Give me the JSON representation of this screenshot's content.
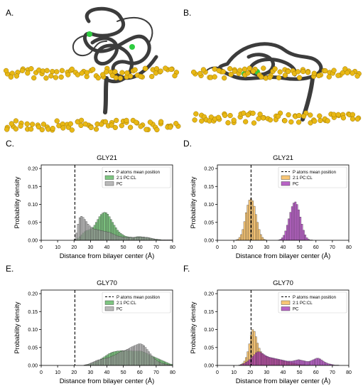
{
  "figure": {
    "panels": {
      "A": {
        "label": "A."
      },
      "B": {
        "label": "B."
      }
    }
  },
  "chart_data": [
    {
      "panel_label": "C.",
      "type": "bar",
      "title": "GLY21",
      "xlabel": "Distance from bilayer center (Å)",
      "ylabel": "Probability density",
      "xlim": [
        0,
        80
      ],
      "ylim": [
        0,
        0.21
      ],
      "xticks": [
        "0",
        "10",
        "20",
        "30",
        "40",
        "50",
        "60",
        "70",
        "80"
      ],
      "yticks": [
        "0.00",
        "0.05",
        "0.10",
        "0.15",
        "0.20"
      ],
      "vline": {
        "x": 20.5,
        "name": "P atoms mean position"
      },
      "legend_position": "top-right",
      "bin_width": 1,
      "series": [
        {
          "name": "2:1 PC:CL",
          "color": "#4caf50",
          "x": [
            20,
            21,
            22,
            23,
            24,
            25,
            26,
            27,
            28,
            29,
            30,
            31,
            32,
            33,
            34,
            35,
            36,
            37,
            38,
            39,
            40,
            41,
            42,
            43,
            44,
            45,
            46,
            47,
            48,
            49,
            50,
            51,
            52,
            53,
            54,
            55,
            56,
            57,
            58,
            59,
            60,
            61,
            62,
            63,
            64,
            65,
            66,
            67,
            68,
            69,
            70,
            71,
            72,
            73,
            74,
            75,
            76,
            77,
            78,
            79
          ],
          "values": [
            0.001,
            0.003,
            0.006,
            0.01,
            0.015,
            0.02,
            0.024,
            0.027,
            0.028,
            0.03,
            0.032,
            0.036,
            0.042,
            0.05,
            0.058,
            0.066,
            0.072,
            0.076,
            0.078,
            0.077,
            0.073,
            0.066,
            0.058,
            0.05,
            0.042,
            0.035,
            0.028,
            0.023,
            0.019,
            0.016,
            0.013,
            0.011,
            0.01,
            0.009,
            0.009,
            0.008,
            0.008,
            0.009,
            0.01,
            0.01,
            0.01,
            0.009,
            0.009,
            0.008,
            0.008,
            0.007,
            0.006,
            0.005,
            0.004,
            0.003,
            0.003,
            0.002,
            0.002,
            0.001,
            0.001,
            0.001,
            0.001,
            0.001,
            0.001,
            0.001
          ]
        },
        {
          "name": "PC",
          "color": "#9e9e9e",
          "x": [
            20,
            21,
            22,
            23,
            24,
            25,
            26,
            27,
            28,
            29,
            30,
            31,
            32,
            33,
            34,
            35,
            36,
            37,
            38,
            39,
            40,
            41,
            42,
            43,
            44,
            45,
            46,
            47,
            48,
            49,
            50,
            51,
            52,
            53,
            54,
            55,
            56,
            57,
            58,
            59,
            60,
            61,
            62,
            63,
            64,
            65,
            66,
            67,
            68,
            69,
            70,
            71,
            72,
            73,
            74,
            75,
            76,
            77,
            78,
            79
          ],
          "values": [
            0.004,
            0.02,
            0.045,
            0.063,
            0.067,
            0.064,
            0.058,
            0.052,
            0.045,
            0.04,
            0.036,
            0.033,
            0.031,
            0.03,
            0.029,
            0.028,
            0.027,
            0.026,
            0.025,
            0.024,
            0.023,
            0.022,
            0.02,
            0.018,
            0.016,
            0.014,
            0.012,
            0.011,
            0.01,
            0.009,
            0.009,
            0.008,
            0.008,
            0.008,
            0.008,
            0.008,
            0.008,
            0.008,
            0.009,
            0.009,
            0.009,
            0.009,
            0.009,
            0.008,
            0.008,
            0.007,
            0.006,
            0.005,
            0.004,
            0.003,
            0.002,
            0.002,
            0.001,
            0.001,
            0.001,
            0.001,
            0.001,
            0.001,
            0.001,
            0.001
          ]
        }
      ]
    },
    {
      "panel_label": "D.",
      "type": "bar",
      "title": "GLY21",
      "xlabel": "Distance from bilayer center (Å)",
      "ylabel": "Probability density",
      "xlim": [
        0,
        80
      ],
      "ylim": [
        0,
        0.21
      ],
      "xticks": [
        "0",
        "10",
        "20",
        "30",
        "40",
        "50",
        "60",
        "70",
        "80"
      ],
      "yticks": [
        "0.00",
        "0.05",
        "0.10",
        "0.15",
        "0.20"
      ],
      "vline": {
        "x": 20.5,
        "name": "P atoms mean position"
      },
      "legend_position": "top-right",
      "bin_width": 1,
      "series": [
        {
          "name": "2:1 PC:CL",
          "color": "#f5b041",
          "x": [
            11,
            12,
            13,
            14,
            15,
            16,
            17,
            18,
            19,
            20,
            21,
            22,
            23,
            24,
            25,
            26,
            27,
            28,
            29
          ],
          "values": [
            0.001,
            0.003,
            0.008,
            0.016,
            0.03,
            0.052,
            0.077,
            0.098,
            0.112,
            0.116,
            0.11,
            0.095,
            0.072,
            0.05,
            0.03,
            0.016,
            0.008,
            0.003,
            0.001
          ]
        },
        {
          "name": "PC",
          "color": "#9c27b0",
          "x": [
            37,
            38,
            39,
            40,
            41,
            42,
            43,
            44,
            45,
            46,
            47,
            48,
            49,
            50,
            51,
            52,
            53,
            54,
            55,
            56,
            57
          ],
          "values": [
            0.001,
            0.003,
            0.007,
            0.014,
            0.026,
            0.042,
            0.06,
            0.078,
            0.094,
            0.104,
            0.107,
            0.1,
            0.085,
            0.065,
            0.045,
            0.028,
            0.015,
            0.007,
            0.003,
            0.001,
            0.001
          ]
        }
      ]
    },
    {
      "panel_label": "E.",
      "type": "bar",
      "title": "GLY70",
      "xlabel": "Distance from bilayer center (Å)",
      "ylabel": "Probability density",
      "xlim": [
        0,
        80
      ],
      "ylim": [
        0,
        0.21
      ],
      "xticks": [
        "0",
        "10",
        "20",
        "30",
        "40",
        "50",
        "60",
        "70",
        "80"
      ],
      "yticks": [
        "0.00",
        "0.05",
        "0.10",
        "0.15",
        "0.20"
      ],
      "vline": {
        "x": 20.5,
        "name": "P atoms mean position"
      },
      "legend_position": "top-right",
      "bin_width": 1,
      "series": [
        {
          "name": "2:1 PC:CL",
          "color": "#4caf50",
          "x": [
            26,
            27,
            28,
            29,
            30,
            31,
            32,
            33,
            34,
            35,
            36,
            37,
            38,
            39,
            40,
            41,
            42,
            43,
            44,
            45,
            46,
            47,
            48,
            49,
            50,
            51,
            52,
            53,
            54,
            55,
            56,
            57,
            58,
            59,
            60,
            61,
            62,
            63,
            64,
            65,
            66,
            67,
            68,
            69,
            70,
            71,
            72,
            73,
            74,
            75,
            76,
            77,
            78,
            79
          ],
          "values": [
            0.001,
            0.002,
            0.003,
            0.004,
            0.005,
            0.007,
            0.009,
            0.011,
            0.013,
            0.015,
            0.018,
            0.021,
            0.024,
            0.027,
            0.03,
            0.033,
            0.035,
            0.037,
            0.038,
            0.039,
            0.04,
            0.04,
            0.041,
            0.041,
            0.041,
            0.041,
            0.041,
            0.041,
            0.041,
            0.04,
            0.04,
            0.04,
            0.04,
            0.04,
            0.04,
            0.039,
            0.037,
            0.035,
            0.033,
            0.03,
            0.028,
            0.026,
            0.024,
            0.022,
            0.02,
            0.018,
            0.016,
            0.014,
            0.012,
            0.01,
            0.008,
            0.006,
            0.004,
            0.003
          ]
        },
        {
          "name": "PC",
          "color": "#9e9e9e",
          "x": [
            26,
            27,
            28,
            29,
            30,
            31,
            32,
            33,
            34,
            35,
            36,
            37,
            38,
            39,
            40,
            41,
            42,
            43,
            44,
            45,
            46,
            47,
            48,
            49,
            50,
            51,
            52,
            53,
            54,
            55,
            56,
            57,
            58,
            59,
            60,
            61,
            62,
            63,
            64,
            65,
            66,
            67,
            68,
            69,
            70,
            71,
            72,
            73,
            74,
            75,
            76,
            77,
            78,
            79
          ],
          "values": [
            0.001,
            0.002,
            0.003,
            0.005,
            0.007,
            0.009,
            0.011,
            0.013,
            0.015,
            0.016,
            0.017,
            0.018,
            0.019,
            0.02,
            0.021,
            0.022,
            0.024,
            0.026,
            0.028,
            0.03,
            0.033,
            0.036,
            0.038,
            0.04,
            0.041,
            0.043,
            0.045,
            0.047,
            0.05,
            0.052,
            0.054,
            0.056,
            0.058,
            0.06,
            0.06,
            0.058,
            0.055,
            0.05,
            0.044,
            0.038,
            0.032,
            0.026,
            0.021,
            0.017,
            0.013,
            0.01,
            0.008,
            0.006,
            0.005,
            0.004,
            0.003,
            0.002,
            0.001,
            0.001
          ]
        }
      ]
    },
    {
      "panel_label": "F.",
      "type": "bar",
      "title": "GLY70",
      "xlabel": "Distance from bilayer center (Å)",
      "ylabel": "Probability density",
      "xlim": [
        0,
        80
      ],
      "ylim": [
        0,
        0.21
      ],
      "xticks": [
        "0",
        "10",
        "20",
        "30",
        "40",
        "50",
        "60",
        "70",
        "80"
      ],
      "yticks": [
        "0.00",
        "0.05",
        "0.10",
        "0.15",
        "0.20"
      ],
      "vline": {
        "x": 20.5,
        "name": "P atoms mean position"
      },
      "legend_position": "top-right",
      "bin_width": 1,
      "series": [
        {
          "name": "2:1 PC:CL",
          "color": "#f5b041",
          "x": [
            13,
            14,
            15,
            16,
            17,
            18,
            19,
            20,
            21,
            22,
            23,
            24,
            25,
            26,
            27,
            28,
            29,
            30,
            31,
            32,
            33,
            34,
            35,
            36,
            37,
            38,
            39,
            40,
            41,
            42,
            43,
            44,
            45,
            46,
            47,
            48,
            49,
            50,
            51,
            52,
            53,
            54,
            55
          ],
          "values": [
            0.001,
            0.003,
            0.006,
            0.012,
            0.022,
            0.038,
            0.06,
            0.085,
            0.1,
            0.095,
            0.08,
            0.062,
            0.048,
            0.038,
            0.032,
            0.028,
            0.025,
            0.023,
            0.021,
            0.02,
            0.019,
            0.018,
            0.017,
            0.016,
            0.015,
            0.014,
            0.013,
            0.012,
            0.011,
            0.01,
            0.009,
            0.008,
            0.007,
            0.006,
            0.005,
            0.004,
            0.003,
            0.003,
            0.002,
            0.002,
            0.001,
            0.001,
            0.001
          ]
        },
        {
          "name": "PC",
          "color": "#9c27b0",
          "x": [
            13,
            14,
            15,
            16,
            17,
            18,
            19,
            20,
            21,
            22,
            23,
            24,
            25,
            26,
            27,
            28,
            29,
            30,
            31,
            32,
            33,
            34,
            35,
            36,
            37,
            38,
            39,
            40,
            41,
            42,
            43,
            44,
            45,
            46,
            47,
            48,
            49,
            50,
            51,
            52,
            53,
            54,
            55,
            56,
            57,
            58,
            59,
            60,
            61,
            62,
            63,
            64,
            65,
            66,
            67,
            68,
            69,
            70,
            71,
            72,
            73
          ],
          "values": [
            0.001,
            0.002,
            0.004,
            0.006,
            0.009,
            0.012,
            0.016,
            0.02,
            0.025,
            0.03,
            0.035,
            0.038,
            0.038,
            0.036,
            0.033,
            0.03,
            0.027,
            0.025,
            0.023,
            0.022,
            0.021,
            0.02,
            0.019,
            0.018,
            0.017,
            0.016,
            0.015,
            0.014,
            0.013,
            0.012,
            0.012,
            0.012,
            0.012,
            0.013,
            0.014,
            0.015,
            0.016,
            0.015,
            0.014,
            0.013,
            0.012,
            0.011,
            0.011,
            0.012,
            0.014,
            0.016,
            0.018,
            0.02,
            0.02,
            0.018,
            0.015,
            0.012,
            0.009,
            0.007,
            0.005,
            0.004,
            0.003,
            0.002,
            0.001,
            0.001,
            0.001
          ]
        }
      ]
    }
  ]
}
